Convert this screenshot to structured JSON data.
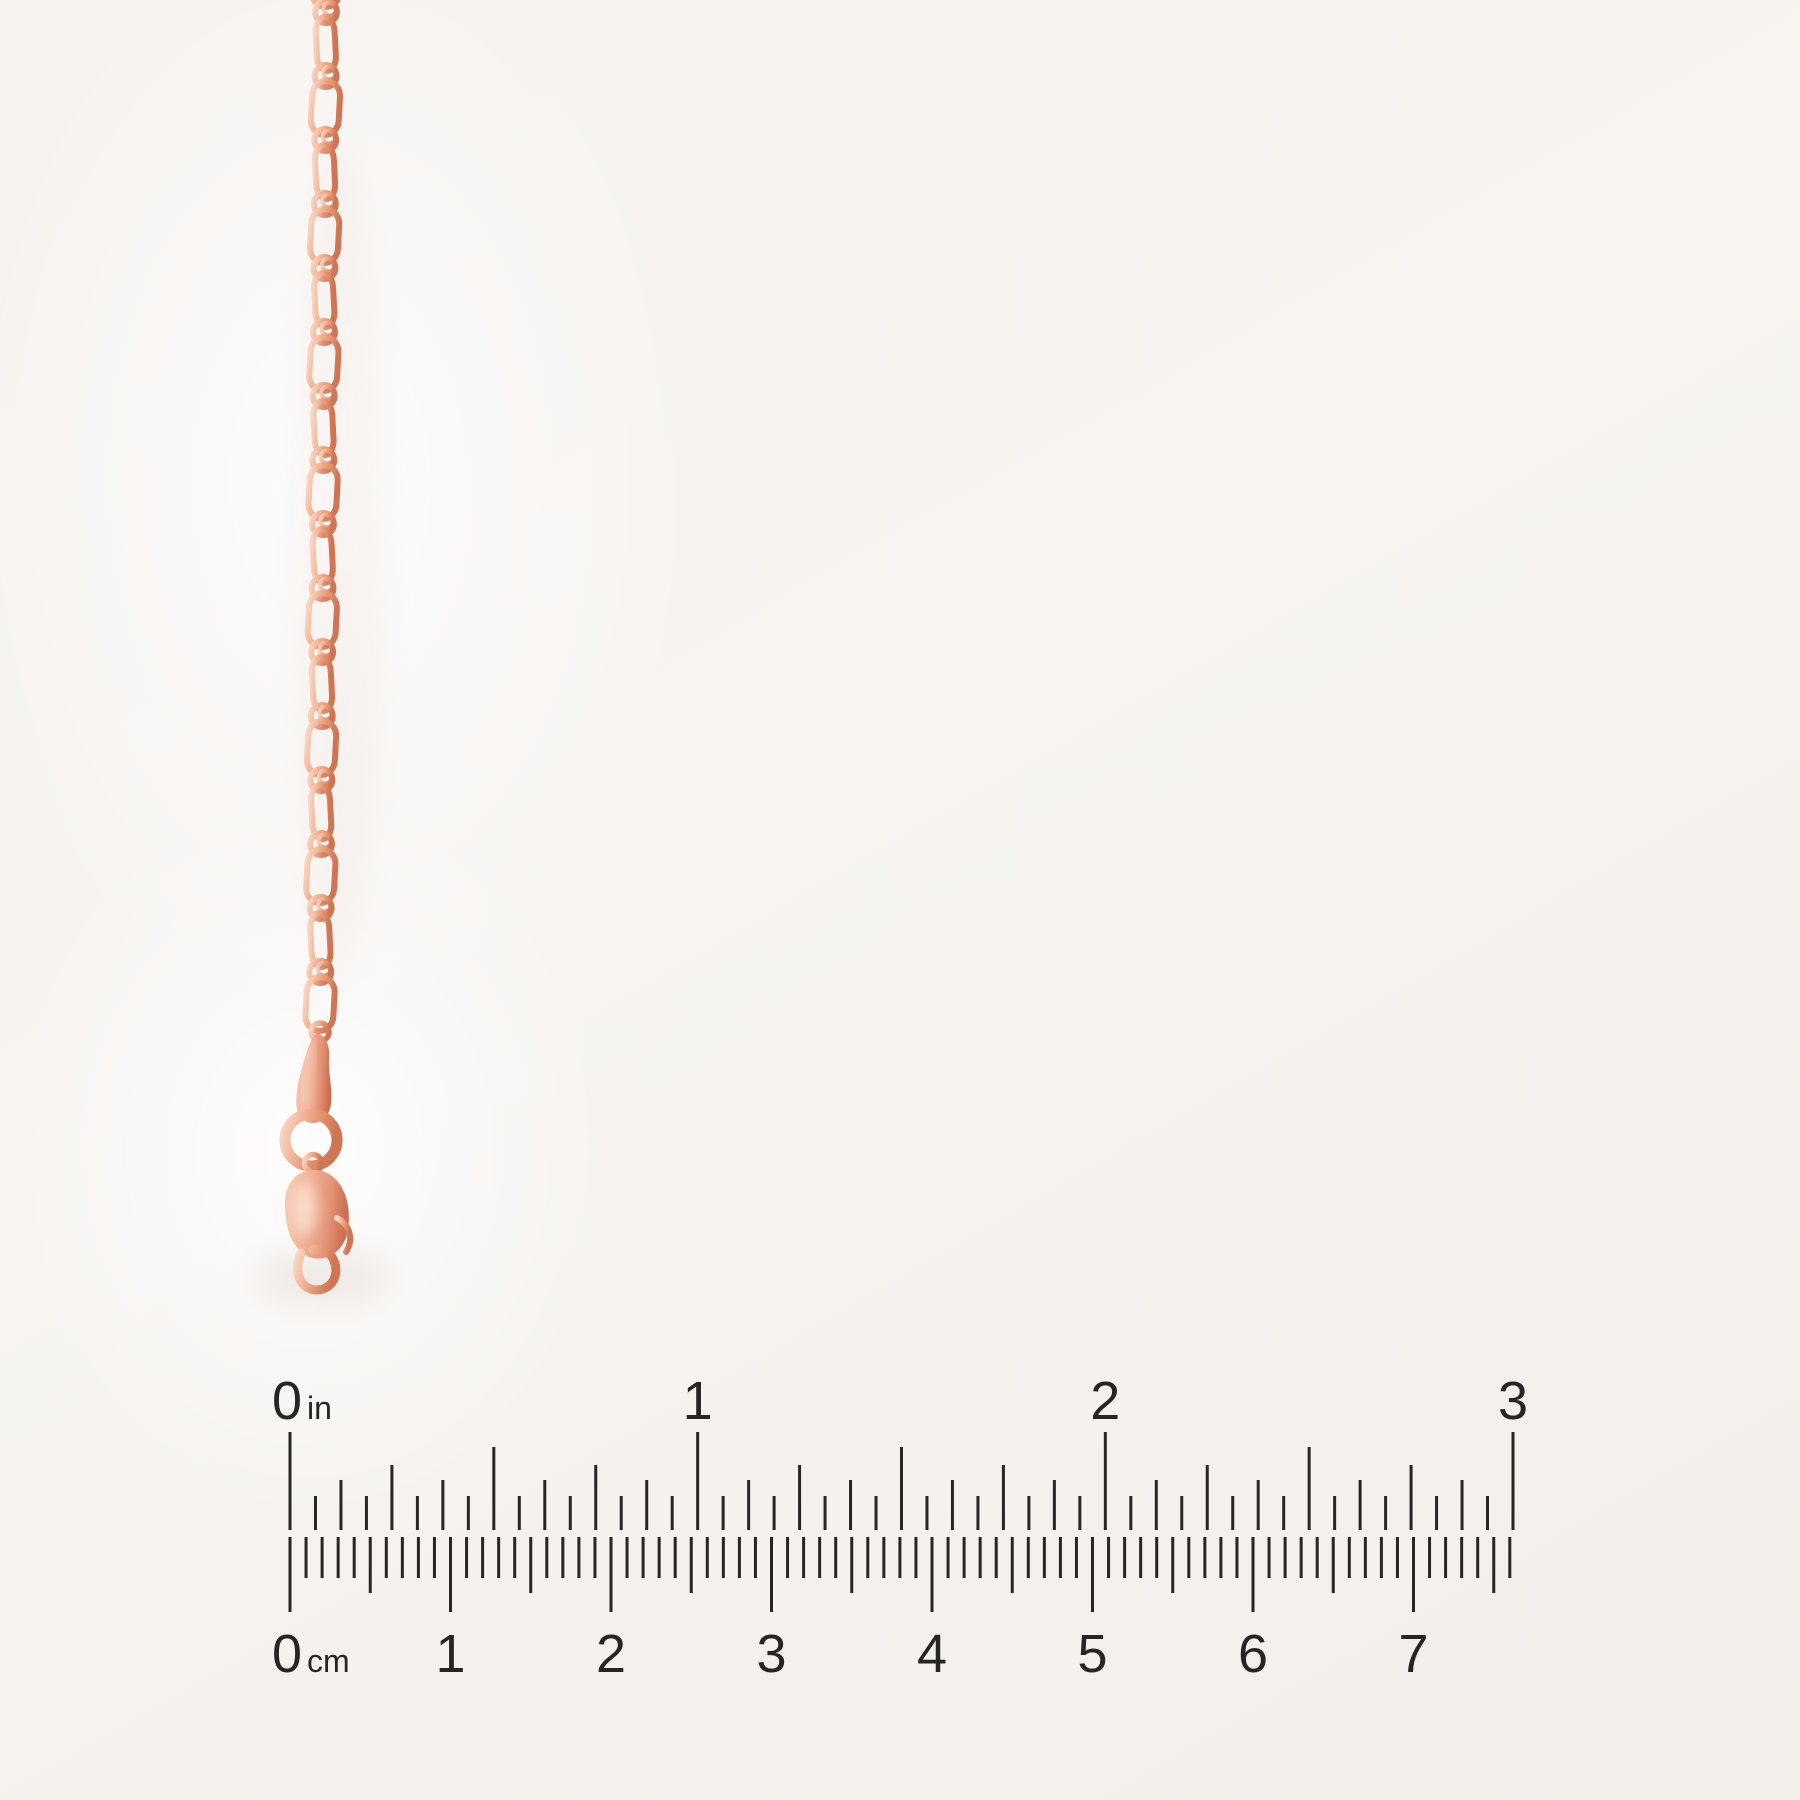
{
  "image": {
    "subject": "rose-gold elongated-cable chain necklace with lobster clasp photographed above a printed ruler",
    "background_color": "#f6f3f0"
  },
  "chain": {
    "style": "elongated-cable-links",
    "long_link_count": 17,
    "colors": {
      "highlight": "#f9d6c3",
      "light": "#f1b394",
      "mid": "#e4946f",
      "deep": "#cf7553"
    },
    "clasp_colors": {
      "face": "#f6c8b2",
      "mid": "#f0b295",
      "edge": "#e29276",
      "deep": "#cc6f4e"
    }
  },
  "clasp": {
    "type": "lobster-clasp"
  },
  "ruler": {
    "tick_color": "#272624",
    "label_color": "#272523",
    "inches": {
      "zero_label": "0",
      "unit_label": "in",
      "number_labels": [
        "1",
        "2",
        "3"
      ],
      "total_inches": 3,
      "ticks_per_inch": 16
    },
    "centimeters": {
      "zero_label": "0",
      "unit_label": "cm",
      "number_labels": [
        "1",
        "2",
        "3",
        "4",
        "5",
        "6",
        "7"
      ],
      "total_millimeters": 76
    }
  }
}
